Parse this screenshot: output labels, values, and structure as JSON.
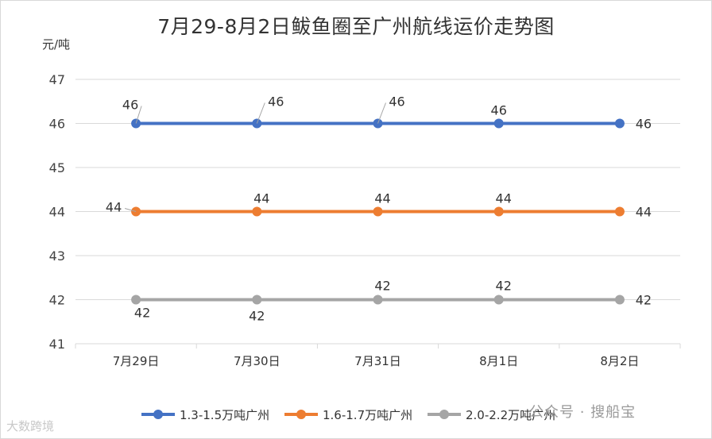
{
  "chart_data": {
    "type": "line",
    "title": "7月29-8月2日鲅鱼圈至广州航线运价走势图",
    "ylabel": "元/吨",
    "xlabel": "",
    "categories": [
      "7月29日",
      "7月30日",
      "7月31日",
      "8月1日",
      "8月2日"
    ],
    "ylim": [
      41,
      47
    ],
    "yticks": [
      "41",
      "42",
      "43",
      "44",
      "45",
      "46",
      "47"
    ],
    "grid": true,
    "legend_position": "bottom",
    "series": [
      {
        "name": "1.3-1.5万吨广州",
        "color": "#4472c4",
        "values": [
          46,
          46,
          46,
          46,
          46
        ]
      },
      {
        "name": "1.6-1.7万吨广州",
        "color": "#ed7d31",
        "values": [
          44,
          44,
          44,
          44,
          44
        ]
      },
      {
        "name": "2.0-2.2万吨广州",
        "color": "#a5a5a5",
        "values": [
          42,
          42,
          42,
          42,
          42
        ]
      }
    ]
  },
  "watermarks": {
    "left": "大数跨境",
    "right": "公众号 · 搜船宝"
  }
}
